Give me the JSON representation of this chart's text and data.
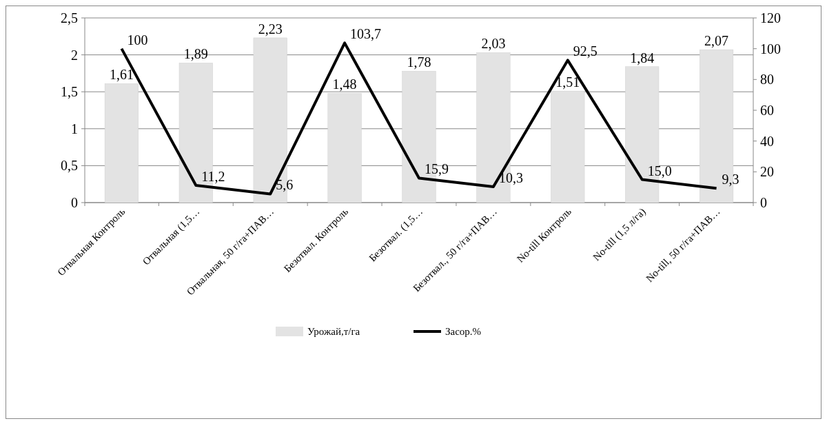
{
  "chart_data": {
    "type": "bar",
    "categories": [
      "Отвальная Контроль",
      "Отвальная (1,5…",
      "Отвальная, 50 г/га+ПАВ…",
      "Безотвал. Контроль",
      "Безотвал. (1,5…",
      "Безотвал., 50 г/га+ПАВ…",
      "No-till Контроль",
      "No-till (1,5 л/га)",
      "No-till, 50 г/га+ПАВ…"
    ],
    "series": [
      {
        "name": "Урожай,т/га",
        "color": "#e3e3e3",
        "values": [
          1.61,
          1.89,
          2.23,
          1.48,
          1.78,
          2.03,
          1.51,
          1.84,
          2.07
        ],
        "value_labels": [
          "1,61",
          "1,89",
          "2,23",
          "1,48",
          "1,78",
          "2,03",
          "1,51",
          "1,84",
          "2,07"
        ]
      },
      {
        "name": "Засор.%",
        "type": "line",
        "axis": "y2",
        "color": "#000000",
        "values": [
          100,
          11.2,
          5.6,
          103.7,
          15.9,
          10.3,
          92.5,
          15.0,
          9.3
        ],
        "value_labels": [
          "100",
          "11,2",
          "5,6",
          "103,7",
          "15,9",
          "10,3",
          "92,5",
          "15,0",
          "9,3"
        ]
      }
    ],
    "ylim": [
      0,
      2.5
    ],
    "yticks": [
      0,
      {
        "value": 0.5,
        "label": "0,5"
      },
      1,
      {
        "value": 1.5,
        "label": "1,5"
      },
      2,
      {
        "value": 2.5,
        "label": "2,5"
      }
    ],
    "y2lim": [
      0,
      120
    ],
    "y2ticks": [
      0,
      20,
      40,
      60,
      80,
      100,
      120
    ],
    "grid": "y",
    "legend": "bottom",
    "marker": "none"
  }
}
